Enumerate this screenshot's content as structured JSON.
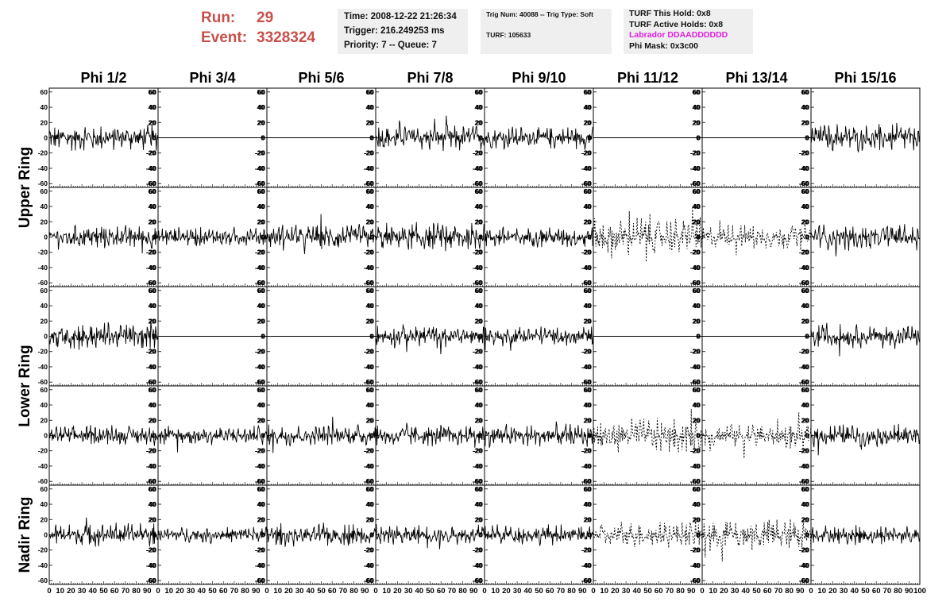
{
  "header": {
    "run_label": "Run:",
    "run_value": "29",
    "event_label": "Event:",
    "event_value": "3328324",
    "time": "Time: 2008-12-22 21:26:34",
    "trigger": "Trigger: 216.249253 ms",
    "priority": "Priority: 7 -- Queue: 7",
    "trig_num": "Trig Num: 40088 -- Trig Type: Soft",
    "turf": "TURF: 105633",
    "turf_this_hold": "TURF This Hold: 0x8",
    "turf_active_holds": "TURF Active Holds: 0x8",
    "labrador": "Labrador DDAADDDDDD",
    "phi_mask": "Phi Mask: 0x3c00",
    "labrador_color": "#e020e0",
    "run_color": "#c8504a"
  },
  "chart_data": {
    "type": "line",
    "columns": [
      "Phi 1/2",
      "Phi 3/4",
      "Phi 5/6",
      "Phi 7/8",
      "Phi 9/10",
      "Phi 11/12",
      "Phi 13/14",
      "Phi 15/16"
    ],
    "row_groups": [
      "Upper Ring",
      "Lower Ring",
      "Nadir Ring"
    ],
    "rows": 5,
    "ylim": [
      -65,
      65
    ],
    "xlim": [
      0,
      100
    ],
    "y_ticks": [
      -60,
      -40,
      -20,
      0,
      20,
      40,
      60
    ],
    "y_tick_labels": [
      "-60",
      "-40",
      "-20",
      "0",
      "20",
      "40",
      "60"
    ],
    "x_ticks": [
      0,
      10,
      20,
      30,
      40,
      50,
      60,
      70,
      80,
      90,
      100
    ],
    "x_tick_labels": [
      "0",
      "10",
      "20",
      "30",
      "40",
      "50",
      "60",
      "70",
      "80",
      "90",
      "100"
    ],
    "flat_channels": [
      [
        0,
        1
      ],
      [
        0,
        2
      ],
      [
        2,
        1
      ],
      [
        2,
        2
      ],
      [
        0,
        5
      ],
      [
        0,
        6
      ],
      [
        2,
        5
      ],
      [
        2,
        6
      ]
    ],
    "dashed_channels": [
      [
        1,
        5
      ],
      [
        1,
        6
      ],
      [
        3,
        5
      ],
      [
        3,
        6
      ],
      [
        4,
        5
      ],
      [
        4,
        6
      ]
    ],
    "amplitude": [
      [
        18,
        0,
        0,
        20,
        16,
        0,
        0,
        20
      ],
      [
        17,
        14,
        18,
        20,
        15,
        28,
        18,
        18
      ],
      [
        20,
        0,
        0,
        16,
        14,
        0,
        0,
        17
      ],
      [
        14,
        13,
        15,
        15,
        16,
        24,
        18,
        16
      ],
      [
        16,
        12,
        16,
        14,
        15,
        18,
        24,
        14
      ]
    ],
    "line_color": "#000000"
  }
}
